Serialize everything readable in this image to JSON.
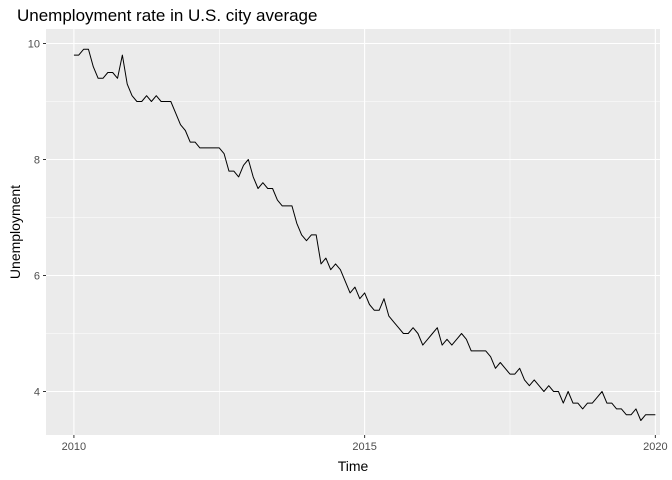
{
  "chart_data": {
    "type": "line",
    "title": "Unemployment rate in U.S. city average",
    "xlabel": "Time",
    "ylabel": "Unemployment",
    "xlim": [
      2009.52,
      2020.08
    ],
    "ylim": [
      3.25,
      10.25
    ],
    "x_ticks": [
      2010,
      2015,
      2020
    ],
    "x_tick_labels": [
      "2010",
      "2015",
      "2020"
    ],
    "y_ticks": [
      4,
      6,
      8,
      10
    ],
    "y_tick_labels": [
      "4",
      "6",
      "8",
      "10"
    ],
    "grid": true,
    "panel_background": "#ebebeb",
    "grid_color": "#ffffff",
    "line_color": "#000000",
    "series": [
      {
        "x_start": 2010,
        "frequency": "monthly",
        "values": [
          9.8,
          9.8,
          9.9,
          9.9,
          9.6,
          9.4,
          9.4,
          9.5,
          9.5,
          9.4,
          9.8,
          9.3,
          9.1,
          9.0,
          9.0,
          9.1,
          9.0,
          9.1,
          9.0,
          9.0,
          9.0,
          8.8,
          8.6,
          8.5,
          8.3,
          8.3,
          8.2,
          8.2,
          8.2,
          8.2,
          8.2,
          8.1,
          7.8,
          7.8,
          7.7,
          7.9,
          8.0,
          7.7,
          7.5,
          7.6,
          7.5,
          7.5,
          7.3,
          7.2,
          7.2,
          7.2,
          6.9,
          6.7,
          6.6,
          6.7,
          6.7,
          6.2,
          6.3,
          6.1,
          6.2,
          6.1,
          5.9,
          5.7,
          5.8,
          5.6,
          5.7,
          5.5,
          5.4,
          5.4,
          5.6,
          5.3,
          5.2,
          5.1,
          5.0,
          5.0,
          5.1,
          5.0,
          4.8,
          4.9,
          5.0,
          5.1,
          4.8,
          4.9,
          4.8,
          4.9,
          5.0,
          4.9,
          4.7,
          4.7,
          4.7,
          4.7,
          4.6,
          4.4,
          4.5,
          4.4,
          4.3,
          4.3,
          4.4,
          4.2,
          4.1,
          4.2,
          4.1,
          4.0,
          4.1,
          4.0,
          4.0,
          3.8,
          4.0,
          3.8,
          3.8,
          3.7,
          3.8,
          3.8,
          3.9,
          4.0,
          3.8,
          3.8,
          3.7,
          3.7,
          3.6,
          3.6,
          3.7,
          3.5,
          3.6,
          3.6,
          3.6
        ]
      }
    ]
  }
}
